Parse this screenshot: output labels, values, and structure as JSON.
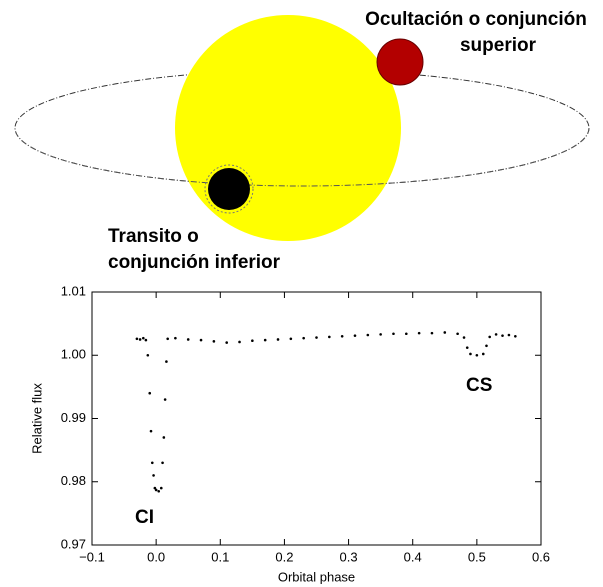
{
  "diagram": {
    "occultation_label": [
      "Ocultación o conjunción",
      "superior"
    ],
    "transit_label": [
      "Transito o",
      "conjunción inferior"
    ]
  },
  "chart_data": {
    "type": "scatter",
    "x_label": "Orbital phase",
    "y_label": "Relative flux",
    "annotations": [
      "CI",
      "CS"
    ],
    "xlim": [
      -0.1,
      0.6
    ],
    "ylim": [
      0.97,
      1.01
    ],
    "xticks": [
      {
        "value": -0.1,
        "label": "−0.1"
      },
      {
        "value": 0,
        "label": "0.0"
      },
      0.1,
      0.2,
      0.3,
      0.4,
      0.5,
      0.6
    ],
    "yticks": [
      0.97,
      0.98,
      0.99,
      {
        "value": 1.0,
        "label": "1.00"
      },
      1.01
    ],
    "color": "#000000",
    "x": [
      -0.03,
      -0.025,
      -0.02,
      -0.016,
      -0.013,
      -0.01,
      -0.008,
      -0.006,
      -0.004,
      -0.002,
      0,
      0.004,
      0.008,
      0.01,
      0.012,
      0.014,
      0.016,
      0.018,
      0.03,
      0.05,
      0.07,
      0.09,
      0.11,
      0.13,
      0.15,
      0.17,
      0.19,
      0.21,
      0.23,
      0.25,
      0.27,
      0.29,
      0.31,
      0.33,
      0.35,
      0.37,
      0.39,
      0.41,
      0.43,
      0.45,
      0.47,
      0.48,
      0.485,
      0.49,
      0.5,
      0.51,
      0.515,
      0.52,
      0.53,
      0.54,
      0.55,
      0.56
    ],
    "values": [
      1.0026,
      1.0025,
      1.0027,
      1.0024,
      1.0,
      0.994,
      0.988,
      0.983,
      0.981,
      0.979,
      0.9787,
      0.9785,
      0.979,
      0.983,
      0.987,
      0.993,
      0.999,
      1.0026,
      1.0027,
      1.0025,
      1.0024,
      1.0022,
      1.002,
      1.0021,
      1.0023,
      1.0024,
      1.0025,
      1.0026,
      1.0027,
      1.0028,
      1.0029,
      1.003,
      1.0031,
      1.0032,
      1.0033,
      1.0034,
      1.0034,
      1.0035,
      1.0035,
      1.0036,
      1.0034,
      1.0028,
      1.0012,
      1.0002,
      1.0,
      1.0002,
      1.0015,
      1.0029,
      1.0033,
      1.0031,
      1.0032,
      1.003
    ]
  }
}
